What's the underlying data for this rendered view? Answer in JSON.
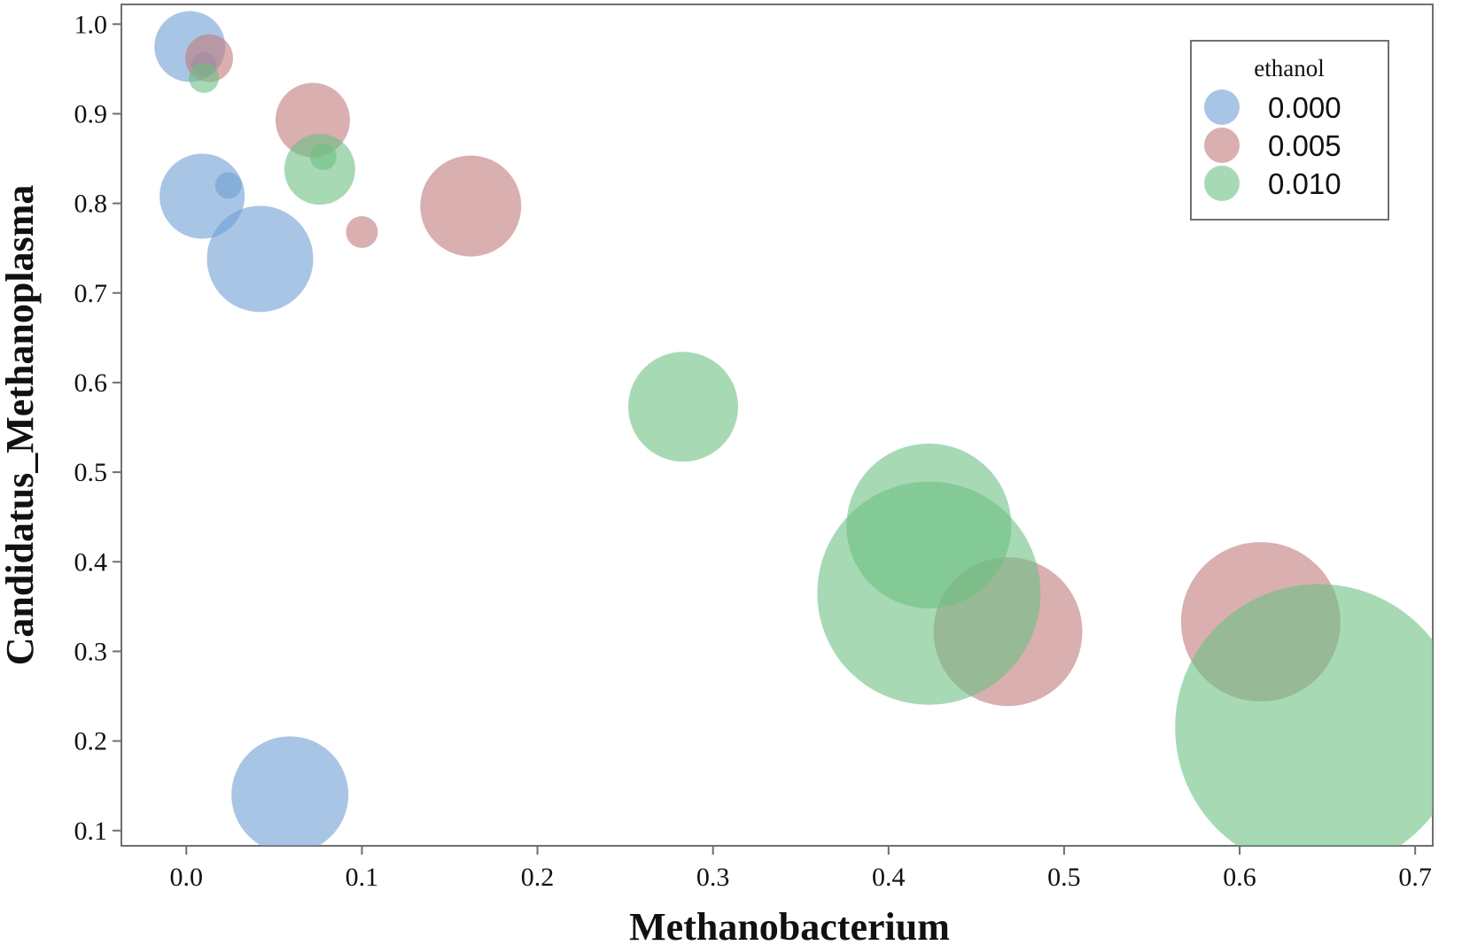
{
  "chart_data": {
    "type": "scatter",
    "subtype": "bubble",
    "xlabel": "Methanobacterium",
    "ylabel": "Candidatus_Methanoplasma",
    "xlim": [
      -0.037,
      0.71
    ],
    "ylim": [
      0.083,
      1.022
    ],
    "xticks": [
      "0.0",
      "0.1",
      "0.2",
      "0.3",
      "0.4",
      "0.5",
      "0.6",
      "0.7"
    ],
    "yticks": [
      "1.0",
      "0.9",
      "0.8",
      "0.7",
      "0.6",
      "0.5",
      "0.4",
      "0.3",
      "0.2",
      "0.1"
    ],
    "grid": false,
    "legend": {
      "title": "ethanol",
      "position": "top-right",
      "entries": [
        "0.000",
        "0.005",
        "0.010"
      ]
    },
    "colors": {
      "0.000": "#6f9fd3",
      "0.005": "#c27a7a",
      "0.010": "#6cc084"
    },
    "bubble_size_note": "bubble size is relative (no size legend); r is a relative size value",
    "series": [
      {
        "name": "0.000",
        "points": [
          {
            "x": 0.002,
            "y": 0.975,
            "r": 0.8
          },
          {
            "x": 0.009,
            "y": 0.808,
            "r": 0.96
          },
          {
            "x": 0.024,
            "y": 0.82,
            "r": 0.3
          },
          {
            "x": 0.042,
            "y": 0.738,
            "r": 1.2
          },
          {
            "x": 0.059,
            "y": 0.14,
            "r": 1.32
          },
          {
            "x": 0.01,
            "y": 0.955,
            "r": 0.28
          }
        ]
      },
      {
        "name": "0.005",
        "points": [
          {
            "x": 0.013,
            "y": 0.962,
            "r": 0.54
          },
          {
            "x": 0.072,
            "y": 0.893,
            "r": 0.84
          },
          {
            "x": 0.1,
            "y": 0.768,
            "r": 0.36
          },
          {
            "x": 0.162,
            "y": 0.797,
            "r": 1.14
          },
          {
            "x": 0.468,
            "y": 0.322,
            "r": 1.68
          },
          {
            "x": 0.612,
            "y": 0.333,
            "r": 1.8
          }
        ]
      },
      {
        "name": "0.010",
        "points": [
          {
            "x": 0.01,
            "y": 0.94,
            "r": 0.34
          },
          {
            "x": 0.076,
            "y": 0.838,
            "r": 0.8
          },
          {
            "x": 0.078,
            "y": 0.852,
            "r": 0.3
          },
          {
            "x": 0.283,
            "y": 0.573,
            "r": 1.24
          },
          {
            "x": 0.423,
            "y": 0.44,
            "r": 1.86
          },
          {
            "x": 0.423,
            "y": 0.365,
            "r": 2.52
          },
          {
            "x": 0.645,
            "y": 0.215,
            "r": 3.24
          }
        ]
      }
    ]
  }
}
